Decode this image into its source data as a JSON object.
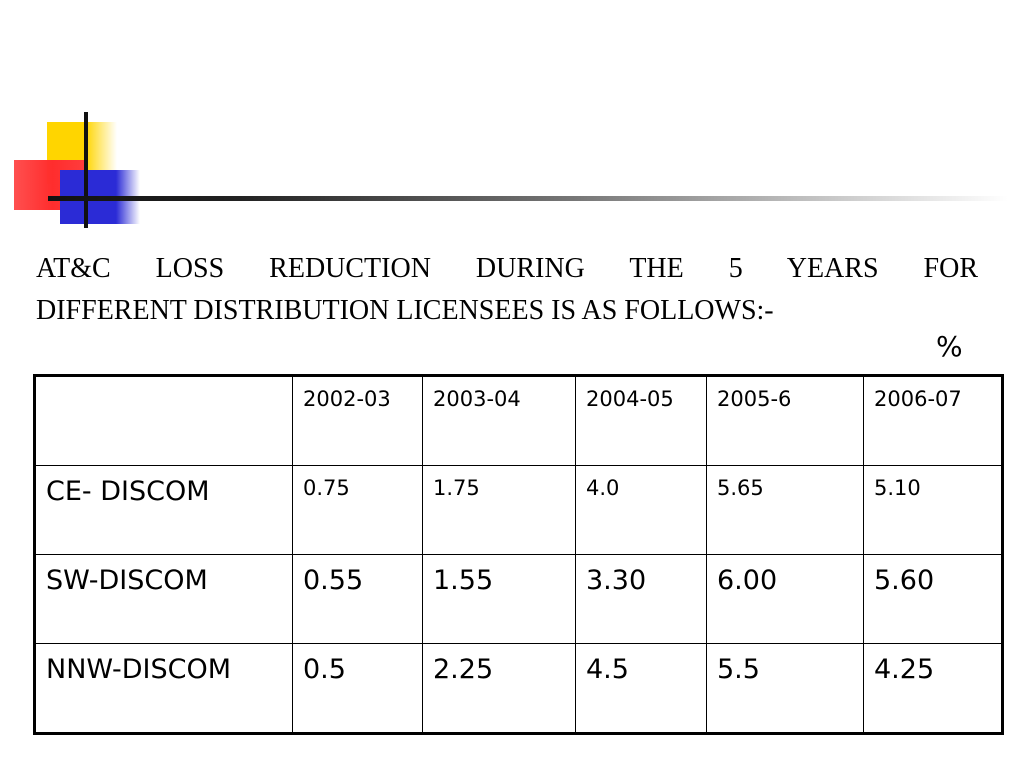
{
  "heading": {
    "line1": "AT&C LOSS REDUCTION DURING THE 5 YEARS FOR",
    "line2": "DIFFERENT DISTRIBUTION LICENSEES IS AS FOLLOWS:-"
  },
  "unit": "%",
  "table": {
    "corner": "",
    "columns": [
      "2002-03",
      "2003-04",
      "2004-05",
      "2005-6",
      "2006-07"
    ],
    "rows": [
      {
        "label": "CE- DISCOM",
        "values": [
          "0.75",
          "1.75",
          "4.0",
          "5.65",
          "5.10"
        ]
      },
      {
        "label": "SW-DISCOM",
        "values": [
          "0.55",
          "1.55",
          "3.30",
          "6.00",
          "5.60"
        ]
      },
      {
        "label": "NNW-DISCOM",
        "values": [
          "0.5",
          "2.25",
          "4.5",
          "5.5",
          "4.25"
        ]
      }
    ]
  }
}
